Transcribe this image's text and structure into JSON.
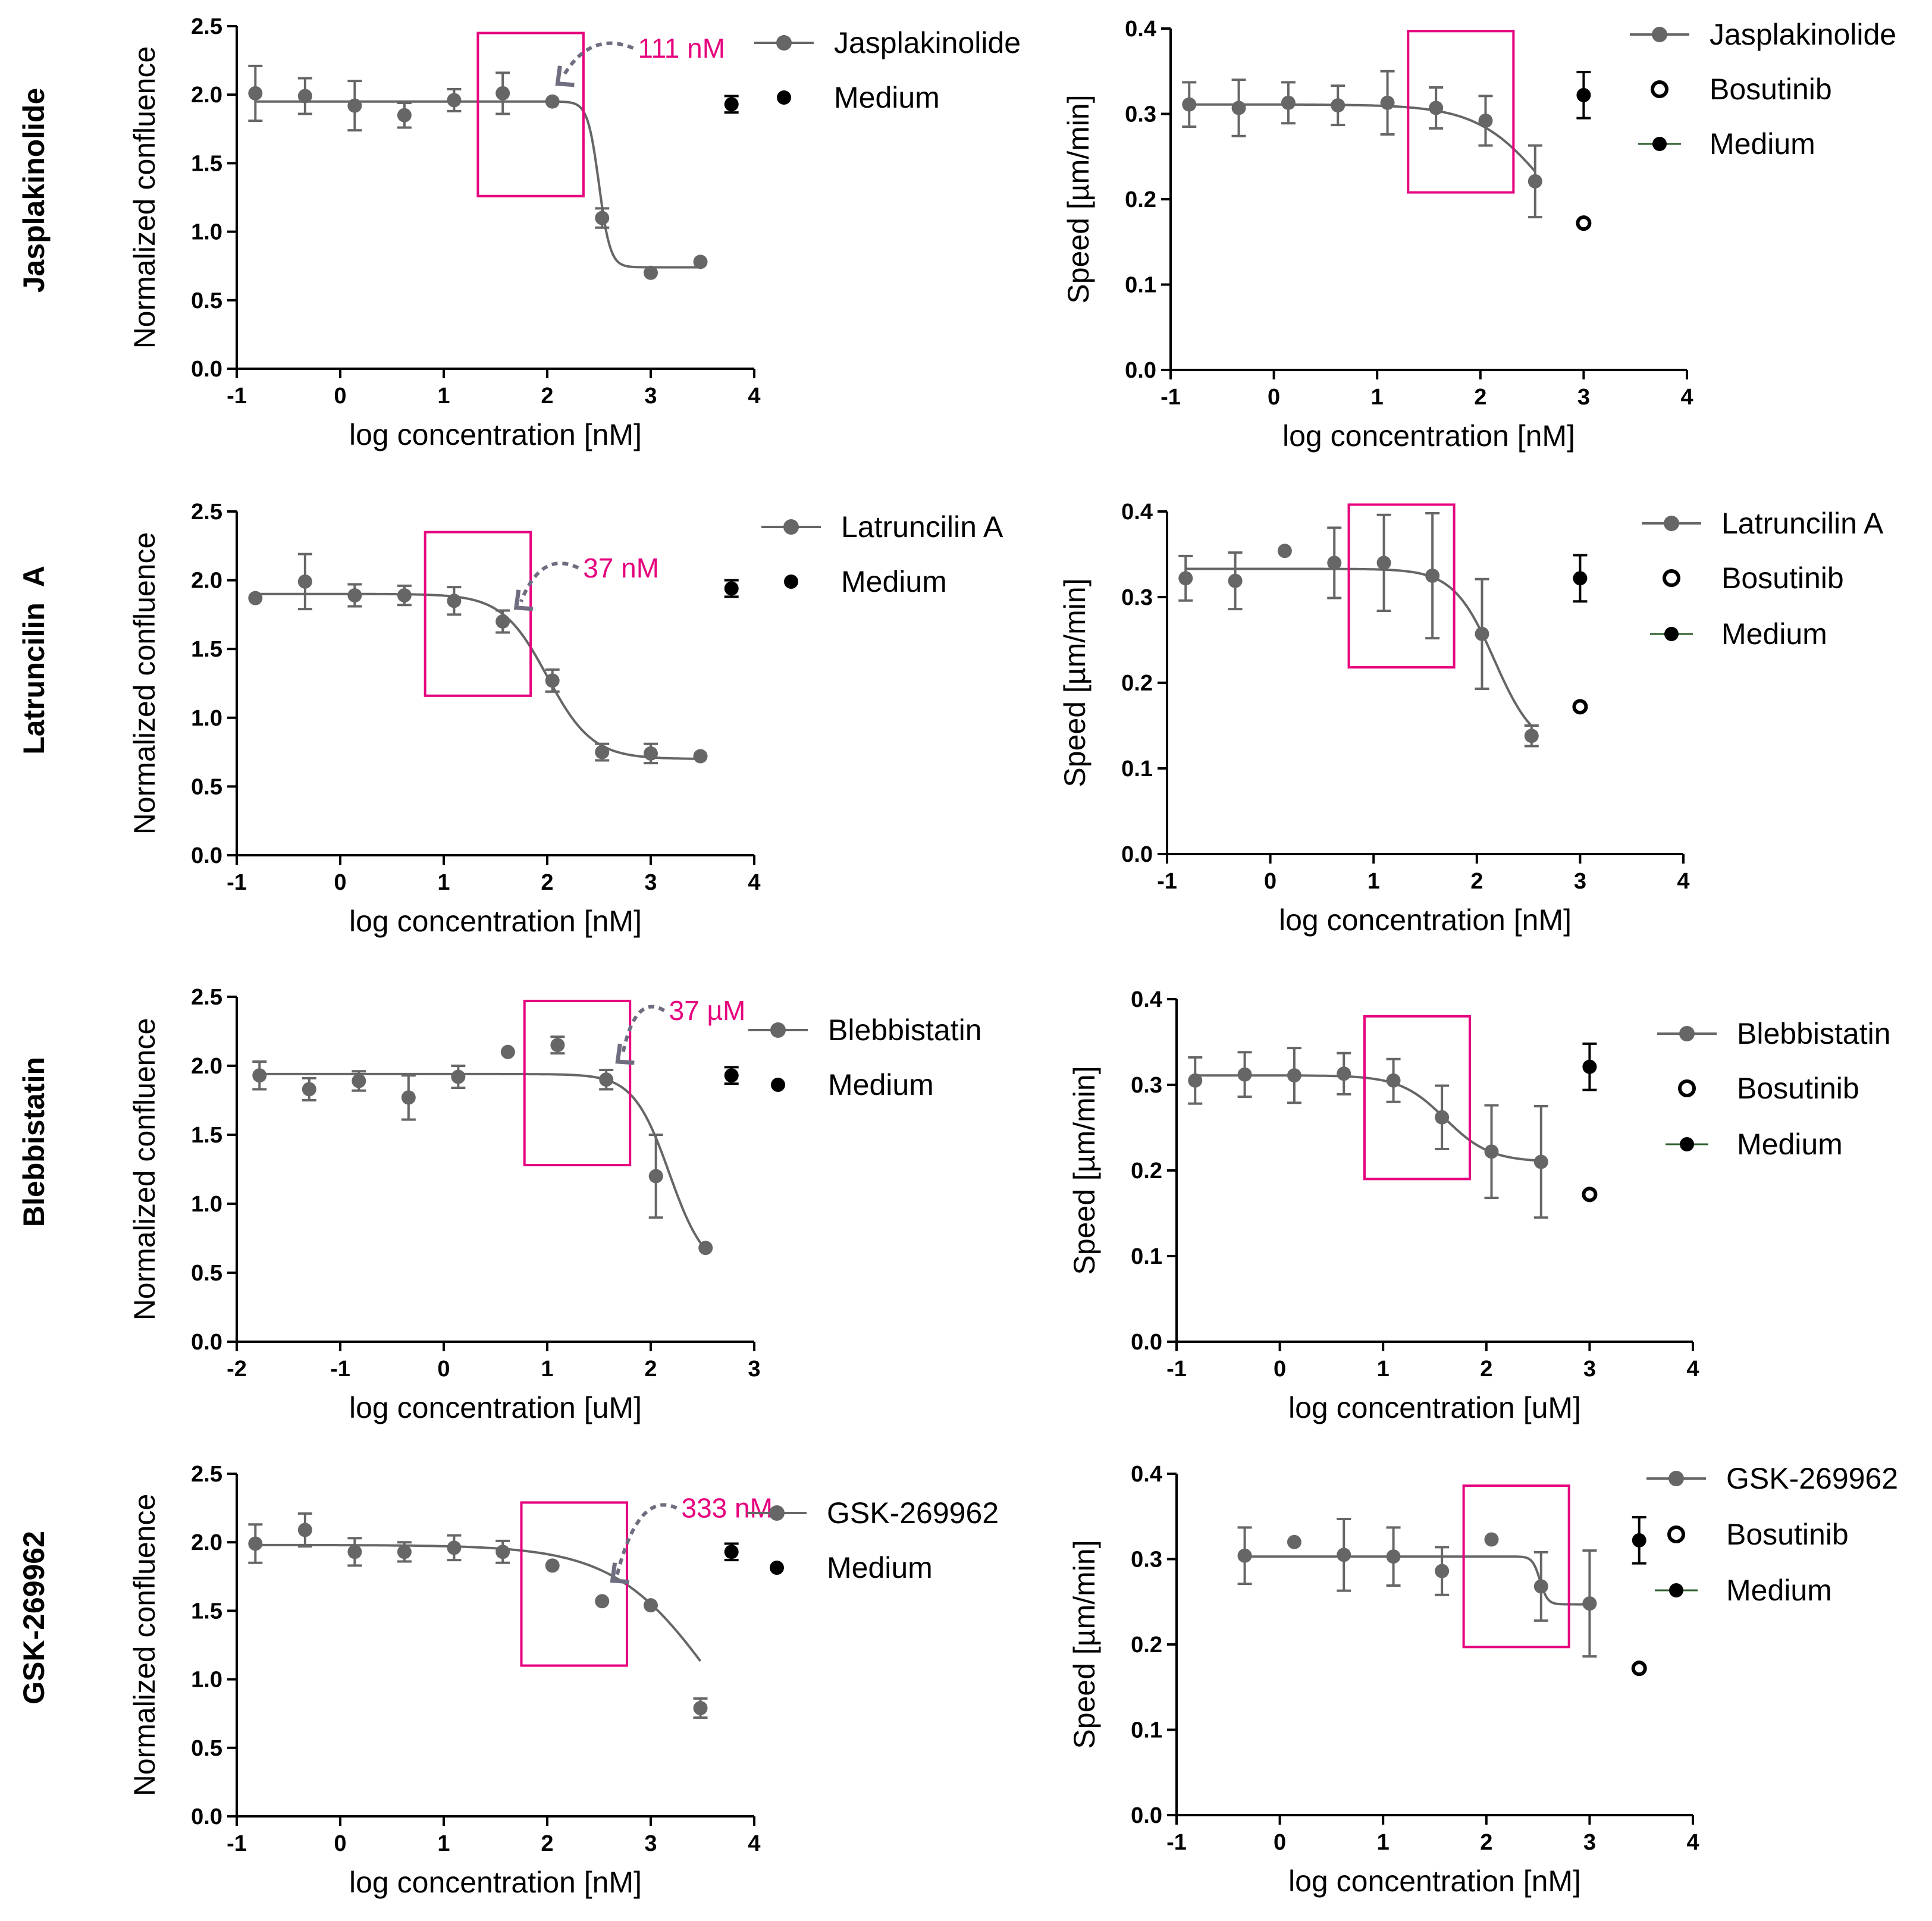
{
  "colors": {
    "series": "#666666",
    "medium": "#000000",
    "highlight": "#e6007e",
    "arrow": "#6e6e80",
    "axis": "#000000"
  },
  "row_labels": [
    "Jasplakinolide",
    "Latruncilin  A",
    "Blebbistatin",
    "GSK-269962"
  ],
  "chart_data": [
    {
      "type": "scatter",
      "title": "",
      "row": "Jasplakinolide",
      "xlabel": "log concentration [nM]",
      "ylabel": "Normalized confluence",
      "xlim": [
        -1,
        4
      ],
      "ylim": [
        0,
        2.5
      ],
      "xticks": [
        -1,
        0,
        1,
        2,
        3,
        4
      ],
      "xtick_labels": [
        "-1",
        "0",
        "1",
        "2",
        "3",
        "4"
      ],
      "yticks": [
        0,
        0.5,
        1.0,
        1.5,
        2.0,
        2.5
      ],
      "ytick_labels": [
        "0.0",
        "0.5",
        "1.0",
        "1.5",
        "2.0",
        "2.5"
      ],
      "series": [
        {
          "name": "Jasplakinolide",
          "x": [
            -0.82,
            -0.34,
            0.14,
            0.62,
            1.1,
            1.57,
            2.05,
            2.53,
            3.0,
            3.48
          ],
          "y": [
            2.01,
            1.99,
            1.92,
            1.85,
            1.96,
            2.01,
            1.95,
            1.1,
            0.7,
            0.78
          ],
          "err": [
            0.2,
            0.13,
            0.18,
            0.09,
            0.08,
            0.15,
            0,
            0.07,
            0,
            0
          ]
        },
        {
          "name": "Medium",
          "x": [
            3.78
          ],
          "y": [
            1.93
          ],
          "err": [
            0.06
          ]
        }
      ],
      "fit": {
        "top": 1.95,
        "bottom": 0.74,
        "logEC50": 2.5,
        "hill": 8
      },
      "highlight_box": {
        "x": [
          1.33,
          2.35
        ],
        "y": [
          1.26,
          2.45
        ]
      },
      "annotation": {
        "text": "111 nM",
        "arrow_tip": [
          2.1,
          2.08
        ],
        "arrow_from": [
          2.83,
          2.34
        ]
      },
      "legend": [
        "Jasplakinolide",
        "Medium"
      ]
    },
    {
      "type": "scatter",
      "title": "",
      "row": "Jasplakinolide",
      "xlabel": "log concentration [nM]",
      "ylabel": "Speed [µm/min]",
      "xlim": [
        -1,
        4
      ],
      "ylim": [
        0,
        0.4
      ],
      "xticks": [
        -1,
        0,
        1,
        2,
        3,
        4
      ],
      "xtick_labels": [
        "-1",
        "0",
        "1",
        "2",
        "3",
        "4"
      ],
      "yticks": [
        0,
        0.1,
        0.2,
        0.3,
        0.4
      ],
      "ytick_labels": [
        "0.0",
        "0.1",
        "0.2",
        "0.3",
        "0.4"
      ],
      "series": [
        {
          "name": "Jasplakinolide",
          "x": [
            -0.82,
            -0.34,
            0.14,
            0.62,
            1.1,
            1.57,
            2.05,
            2.53
          ],
          "y": [
            0.311,
            0.307,
            0.313,
            0.31,
            0.313,
            0.307,
            0.292,
            0.221
          ],
          "err": [
            0.026,
            0.033,
            0.024,
            0.023,
            0.037,
            0.024,
            0.029,
            0.042
          ]
        },
        {
          "name": "Bosutinib",
          "x": [
            3.0
          ],
          "y": [
            0.172
          ],
          "err": [
            0
          ]
        },
        {
          "name": "Medium",
          "x": [
            3.0
          ],
          "y": [
            0.322
          ],
          "err": [
            0.027
          ]
        }
      ],
      "fit": {
        "top": 0.311,
        "bottom": 0.12,
        "logEC50": 2.65,
        "hill": 1.3
      },
      "fit_xrange": [
        -0.82,
        2.53
      ],
      "highlight_box": {
        "x": [
          1.3,
          2.32
        ],
        "y": [
          0.208,
          0.397
        ]
      },
      "legend": [
        "Jasplakinolide",
        "Bosutinib",
        "Medium"
      ]
    },
    {
      "type": "scatter",
      "title": "",
      "row": "Latruncilin  A",
      "xlabel": "log concentration [nM]",
      "ylabel": "Normalized confluence",
      "xlim": [
        -1,
        4
      ],
      "ylim": [
        0,
        2.5
      ],
      "xticks": [
        -1,
        0,
        1,
        2,
        3,
        4
      ],
      "xtick_labels": [
        "-1",
        "0",
        "1",
        "2",
        "3",
        "4"
      ],
      "yticks": [
        0,
        0.5,
        1.0,
        1.5,
        2.0,
        2.5
      ],
      "ytick_labels": [
        "0.0",
        "0.5",
        "1.0",
        "1.5",
        "2.0",
        "2.5"
      ],
      "series": [
        {
          "name": "Latruncilin A",
          "x": [
            -0.82,
            -0.34,
            0.14,
            0.62,
            1.1,
            1.57,
            2.05,
            2.53,
            3.0,
            3.48
          ],
          "y": [
            1.87,
            1.99,
            1.89,
            1.89,
            1.85,
            1.7,
            1.27,
            0.75,
            0.74,
            0.72
          ],
          "err": [
            0,
            0.2,
            0.08,
            0.07,
            0.1,
            0.08,
            0.08,
            0.06,
            0.07,
            0
          ]
        },
        {
          "name": "Medium",
          "x": [
            3.78
          ],
          "y": [
            1.94
          ],
          "err": [
            0.06
          ]
        }
      ],
      "fit": {
        "top": 1.9,
        "bottom": 0.7,
        "logEC50": 2.0,
        "hill": 2
      },
      "highlight_box": {
        "x": [
          0.82,
          1.84
        ],
        "y": [
          1.16,
          2.35
        ]
      },
      "annotation": {
        "text": "37 nM",
        "arrow_tip": [
          1.7,
          1.8
        ],
        "arrow_from": [
          2.3,
          2.09
        ]
      },
      "legend": [
        "Latruncilin A",
        "Medium"
      ]
    },
    {
      "type": "scatter",
      "title": "",
      "row": "Latruncilin  A",
      "xlabel": "log concentration [nM]",
      "ylabel": "Speed [µm/min]",
      "xlim": [
        -1,
        4
      ],
      "ylim": [
        0,
        0.4
      ],
      "xticks": [
        -1,
        0,
        1,
        2,
        3,
        4
      ],
      "xtick_labels": [
        "-1",
        "0",
        "1",
        "2",
        "3",
        "4"
      ],
      "yticks": [
        0,
        0.1,
        0.2,
        0.3,
        0.4
      ],
      "ytick_labels": [
        "0.0",
        "0.1",
        "0.2",
        "0.3",
        "0.4"
      ],
      "series": [
        {
          "name": "Latruncilin A",
          "x": [
            -0.82,
            -0.34,
            0.14,
            0.62,
            1.1,
            1.57,
            2.05,
            2.53
          ],
          "y": [
            0.322,
            0.319,
            0.354,
            0.34,
            0.34,
            0.325,
            0.257,
            0.138
          ],
          "err": [
            0.026,
            0.033,
            0,
            0.041,
            0.056,
            0.073,
            0.064,
            0.012
          ]
        },
        {
          "name": "Bosutinib",
          "x": [
            3.0
          ],
          "y": [
            0.172
          ],
          "err": [
            0
          ]
        },
        {
          "name": "Medium",
          "x": [
            3.0
          ],
          "y": [
            0.322
          ],
          "err": [
            0.027
          ]
        }
      ],
      "fit": {
        "top": 0.333,
        "bottom": 0.12,
        "logEC50": 2.17,
        "hill": 2.2
      },
      "fit_xrange": [
        -0.82,
        2.53
      ],
      "highlight_box": {
        "x": [
          0.76,
          1.78
        ],
        "y": [
          0.218,
          0.408
        ]
      },
      "legend": [
        "Latruncilin A",
        "Bosutinib",
        "Medium"
      ]
    },
    {
      "type": "scatter",
      "title": "",
      "row": "Blebbistatin",
      "xlabel": "log concentration [uM]",
      "ylabel": "Normalized confluence",
      "xlim": [
        -2,
        3
      ],
      "ylim": [
        0,
        2.5
      ],
      "xticks": [
        -2,
        -1,
        0,
        1,
        2,
        3
      ],
      "xtick_labels": [
        "-2",
        "-1",
        "0",
        "1",
        "2",
        "3"
      ],
      "yticks": [
        0,
        0.5,
        1.0,
        1.5,
        2.0,
        2.5
      ],
      "ytick_labels": [
        "0.0",
        "0.5",
        "1.0",
        "1.5",
        "2.0",
        "2.5"
      ],
      "series": [
        {
          "name": "Blebbistatin",
          "x": [
            -1.78,
            -1.3,
            -0.82,
            -0.34,
            0.14,
            0.62,
            1.1,
            1.57,
            2.05,
            2.53
          ],
          "y": [
            1.93,
            1.83,
            1.89,
            1.77,
            1.92,
            2.1,
            2.15,
            1.9,
            1.2,
            0.68
          ],
          "err": [
            0.1,
            0.08,
            0.07,
            0.16,
            0.08,
            0,
            0.06,
            0.07,
            0.3,
            0
          ]
        },
        {
          "name": "Medium",
          "x": [
            2.78
          ],
          "y": [
            1.93
          ],
          "err": [
            0.06
          ]
        }
      ],
      "fit": {
        "top": 1.94,
        "bottom": 0.5,
        "logEC50": 2.18,
        "hill": 2.5
      },
      "highlight_box": {
        "x": [
          0.78,
          1.8
        ],
        "y": [
          1.28,
          2.47
        ]
      },
      "annotation": {
        "text": "37 µM",
        "arrow_tip": [
          1.68,
          2.03
        ],
        "arrow_from": [
          2.13,
          2.4
        ]
      },
      "legend": [
        "Blebbistatin",
        "Medium"
      ]
    },
    {
      "type": "scatter",
      "title": "",
      "row": "Blebbistatin",
      "xlabel": "log concentration [uM]",
      "ylabel": "Speed [µm/min]",
      "xlim": [
        -1,
        4
      ],
      "ylim": [
        0,
        0.4
      ],
      "xticks": [
        -1,
        0,
        1,
        2,
        3,
        4
      ],
      "xtick_labels": [
        "-1",
        "0",
        "1",
        "2",
        "3",
        "4"
      ],
      "yticks": [
        0,
        0.1,
        0.2,
        0.3,
        0.4
      ],
      "ytick_labels": [
        "0.0",
        "0.1",
        "0.2",
        "0.3",
        "0.4"
      ],
      "series": [
        {
          "name": "Blebbistatin",
          "x": [
            -0.82,
            -0.34,
            0.14,
            0.62,
            1.1,
            1.57,
            2.05,
            2.53
          ],
          "y": [
            0.305,
            0.312,
            0.311,
            0.313,
            0.305,
            0.262,
            0.222,
            0.21
          ],
          "err": [
            0.027,
            0.026,
            0.032,
            0.024,
            0.025,
            0.037,
            0.054,
            0.065
          ]
        },
        {
          "name": "Bosutinib",
          "x": [
            3.0
          ],
          "y": [
            0.172
          ],
          "err": [
            0
          ]
        },
        {
          "name": "Medium",
          "x": [
            3.0
          ],
          "y": [
            0.321
          ],
          "err": [
            0.027
          ]
        }
      ],
      "fit": {
        "top": 0.311,
        "bottom": 0.21,
        "logEC50": 1.6,
        "hill": 2
      },
      "fit_xrange": [
        -0.82,
        2.53
      ],
      "highlight_box": {
        "x": [
          0.82,
          1.84
        ],
        "y": [
          0.19,
          0.38
        ]
      },
      "legend": [
        "Blebbistatin",
        "Bosutinib",
        "Medium"
      ]
    },
    {
      "type": "scatter",
      "title": "",
      "row": "GSK-269962",
      "xlabel": "log concentration [nM]",
      "ylabel": "Normalized confluence",
      "xlim": [
        -1,
        4
      ],
      "ylim": [
        0,
        2.5
      ],
      "xticks": [
        -1,
        0,
        1,
        2,
        3,
        4
      ],
      "xtick_labels": [
        "-1",
        "0",
        "1",
        "2",
        "3",
        "4"
      ],
      "yticks": [
        0,
        0.5,
        1.0,
        1.5,
        2.0,
        2.5
      ],
      "ytick_labels": [
        "0.0",
        "0.5",
        "1.0",
        "1.5",
        "2.0",
        "2.5"
      ],
      "series": [
        {
          "name": "GSK-269962",
          "x": [
            -0.82,
            -0.34,
            0.14,
            0.62,
            1.1,
            1.57,
            2.05,
            2.53,
            3.0,
            3.48
          ],
          "y": [
            1.99,
            2.09,
            1.93,
            1.93,
            1.96,
            1.93,
            1.83,
            1.57,
            1.54,
            0.79
          ],
          "err": [
            0.14,
            0.12,
            0.1,
            0.07,
            0.09,
            0.08,
            0,
            0,
            0,
            0.07
          ]
        },
        {
          "name": "Medium",
          "x": [
            3.78
          ],
          "y": [
            1.93
          ],
          "err": [
            0.06
          ]
        }
      ],
      "fit": {
        "top": 1.98,
        "bottom": 0.0,
        "logEC50": 3.62,
        "hill": 0.9
      },
      "highlight_box": {
        "x": [
          1.75,
          2.77
        ],
        "y": [
          1.1,
          2.29
        ]
      },
      "annotation": {
        "text": "333 nM",
        "arrow_tip": [
          2.63,
          1.72
        ],
        "arrow_from": [
          3.25,
          2.25
        ]
      },
      "legend": [
        "GSK-269962",
        "Medium"
      ]
    },
    {
      "type": "scatter",
      "title": "",
      "row": "GSK-269962",
      "xlabel": "log concentration [nM]",
      "ylabel": "Speed [µm/min]",
      "xlim": [
        -1,
        4
      ],
      "ylim": [
        0,
        0.4
      ],
      "xticks": [
        -1,
        0,
        1,
        2,
        3,
        4
      ],
      "xtick_labels": [
        "-1",
        "0",
        "1",
        "2",
        "3",
        "4"
      ],
      "yticks": [
        0,
        0.1,
        0.2,
        0.3,
        0.4
      ],
      "ytick_labels": [
        "0.0",
        "0.1",
        "0.2",
        "0.3",
        "0.4"
      ],
      "series": [
        {
          "name": "GSK-269962",
          "x": [
            -0.34,
            0.14,
            0.62,
            1.1,
            1.57,
            2.05,
            2.53,
            3.0
          ],
          "y": [
            0.304,
            0.32,
            0.305,
            0.303,
            0.286,
            0.323,
            0.268,
            0.248
          ],
          "err": [
            0.033,
            0,
            0.042,
            0.034,
            0.028,
            0,
            0.04,
            0.062
          ]
        },
        {
          "name": "Bosutinib",
          "x": [
            3.48
          ],
          "y": [
            0.172
          ],
          "err": [
            0
          ]
        },
        {
          "name": "Medium",
          "x": [
            3.48
          ],
          "y": [
            0.322
          ],
          "err": [
            0.027
          ]
        }
      ],
      "fit": {
        "top": 0.303,
        "bottom": 0.247,
        "logEC50": 2.52,
        "hill": 12
      },
      "fit_xrange": [
        -0.34,
        3.0
      ],
      "highlight_box": {
        "x": [
          1.78,
          2.8
        ],
        "y": [
          0.197,
          0.386
        ]
      },
      "legend": [
        "GSK-269962",
        "Bosutinib",
        "Medium"
      ]
    }
  ]
}
